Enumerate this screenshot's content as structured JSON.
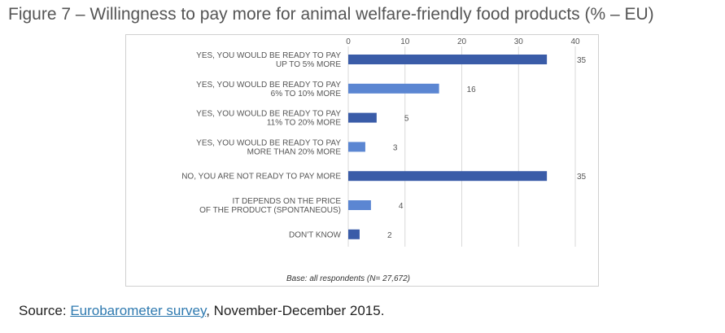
{
  "figure": {
    "title": "Figure 7 – Willingness to pay more for animal welfare-friendly food products (% – EU)"
  },
  "source": {
    "prefix": "Source: ",
    "link_text": "Eurobarometer survey",
    "suffix": ", November-December 2015."
  },
  "colors": {
    "dark_bar": "#3a5ca8",
    "light_bar": "#5b86d2",
    "gridline": "#d9d9d9"
  },
  "chart_data": {
    "type": "bar",
    "orientation": "horizontal",
    "title": "",
    "xlabel": "",
    "ylabel": "",
    "xlim": [
      0,
      40
    ],
    "ticks": [
      0,
      10,
      20,
      30,
      40
    ],
    "grid": true,
    "legend": "none",
    "note": "Base: all respondents (N= 27,672)",
    "categories": [
      [
        "YES, YOU WOULD BE READY TO PAY",
        "UP TO 5% MORE"
      ],
      [
        "YES, YOU WOULD BE READY TO PAY",
        "6% TO 10% MORE"
      ],
      [
        "YES, YOU WOULD BE READY TO PAY",
        "11% TO 20% MORE"
      ],
      [
        "YES, YOU WOULD BE READY TO PAY",
        "MORE THAN 20% MORE"
      ],
      [
        "NO, YOU ARE NOT READY TO PAY MORE"
      ],
      [
        "IT DEPENDS ON THE PRICE",
        "OF THE PRODUCT (SPONTANEOUS)"
      ],
      [
        "DON'T KNOW"
      ]
    ],
    "values": [
      35,
      16,
      5,
      3,
      35,
      4,
      2
    ],
    "bar_colors": [
      "dark",
      "light",
      "dark",
      "light",
      "dark",
      "light",
      "dark"
    ]
  }
}
